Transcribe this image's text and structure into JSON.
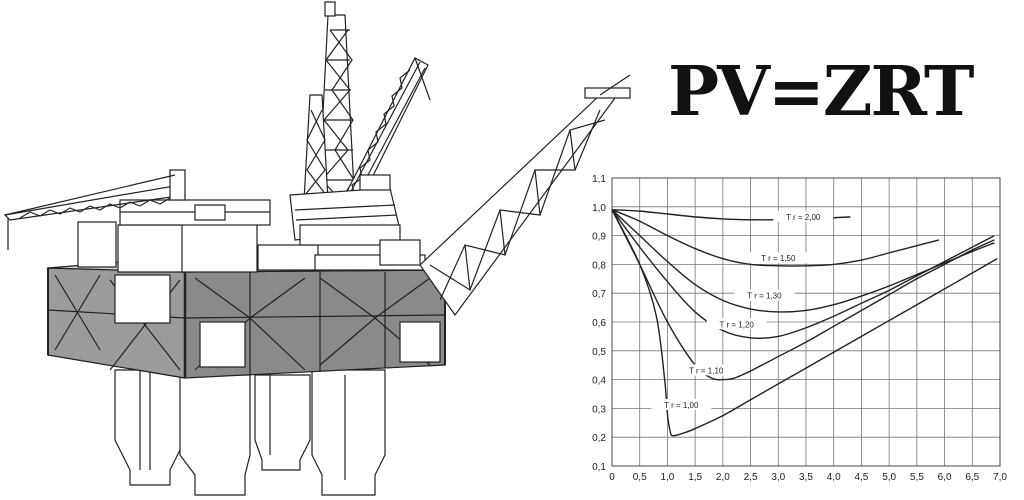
{
  "formula": "PV=ZRT",
  "illustration": {
    "icon": "offshore-oil-platform-icon"
  },
  "chart_data": {
    "type": "line",
    "xlim": [
      0,
      7.0
    ],
    "ylim": [
      0.1,
      1.1
    ],
    "x_ticks": [
      "0",
      "0,5",
      "1,0",
      "1,5",
      "2,0",
      "2,5",
      "3,0",
      "3,5",
      "4,0",
      "4,5",
      "5,0",
      "5,5",
      "6,0",
      "6,5",
      "7,0"
    ],
    "y_ticks": [
      "0,1",
      "0,2",
      "0,3",
      "0,4",
      "0,5",
      "0,6",
      "0,7",
      "0,8",
      "0,9",
      "1,0",
      "1,1"
    ],
    "grid": true,
    "line_color": "#222222",
    "series": [
      {
        "name": "T r = 2,00",
        "x": [
          0,
          0.5,
          1.0,
          1.5,
          2.0,
          2.5,
          3.0,
          3.5,
          4.0,
          4.3
        ],
        "y": [
          0.99,
          0.985,
          0.975,
          0.965,
          0.958,
          0.955,
          0.955,
          0.957,
          0.962,
          0.965
        ]
      },
      {
        "name": "T r = 1,50",
        "x": [
          0,
          0.5,
          1.0,
          1.5,
          2.0,
          2.5,
          3.0,
          3.5,
          4.0,
          4.5,
          5.0,
          5.5,
          5.9
        ],
        "y": [
          0.99,
          0.95,
          0.9,
          0.855,
          0.82,
          0.8,
          0.795,
          0.795,
          0.8,
          0.815,
          0.84,
          0.865,
          0.885
        ]
      },
      {
        "name": "T r = 1,30",
        "x": [
          0,
          0.5,
          1.0,
          1.5,
          2.0,
          2.5,
          3.0,
          3.5,
          4.0,
          4.5,
          5.0,
          5.5,
          6.0,
          6.5,
          6.9
        ],
        "y": [
          0.99,
          0.9,
          0.81,
          0.73,
          0.675,
          0.645,
          0.635,
          0.64,
          0.66,
          0.69,
          0.725,
          0.765,
          0.805,
          0.845,
          0.875
        ]
      },
      {
        "name": "T r = 1,20",
        "x": [
          0,
          0.5,
          1.0,
          1.5,
          2.0,
          2.5,
          3.0,
          3.5,
          4.0,
          4.5,
          5.0,
          5.5,
          6.0,
          6.5,
          6.9
        ],
        "y": [
          0.99,
          0.86,
          0.74,
          0.635,
          0.57,
          0.545,
          0.55,
          0.58,
          0.62,
          0.665,
          0.71,
          0.76,
          0.81,
          0.86,
          0.9
        ]
      },
      {
        "name": "T r = 1,10",
        "x": [
          0,
          0.5,
          1.0,
          1.5,
          1.8,
          2.0,
          2.2,
          2.5,
          3.0,
          3.5,
          4.0,
          4.5,
          5.0,
          5.5,
          6.0,
          6.5,
          6.9
        ],
        "y": [
          0.99,
          0.8,
          0.6,
          0.45,
          0.405,
          0.4,
          0.405,
          0.43,
          0.48,
          0.53,
          0.585,
          0.64,
          0.695,
          0.75,
          0.8,
          0.85,
          0.885
        ]
      },
      {
        "name": "T r = 1,00",
        "x": [
          0,
          0.5,
          0.8,
          0.95,
          1.0,
          1.05,
          1.1,
          1.3,
          1.5,
          2.0,
          2.5,
          3.0,
          3.5,
          4.0,
          4.5,
          5.0,
          5.5,
          6.0,
          6.5,
          6.95
        ],
        "y": [
          0.99,
          0.8,
          0.62,
          0.4,
          0.28,
          0.22,
          0.205,
          0.215,
          0.23,
          0.275,
          0.33,
          0.385,
          0.44,
          0.495,
          0.55,
          0.605,
          0.66,
          0.715,
          0.77,
          0.82
        ]
      }
    ],
    "curve_labels": [
      {
        "text": "T r = 2,00",
        "x": 3.45,
        "y": 0.958
      },
      {
        "text": "T r = 1,50",
        "x": 3.0,
        "y": 0.815
      },
      {
        "text": "T r = 1,30",
        "x": 2.75,
        "y": 0.685
      },
      {
        "text": "T r = 1,20",
        "x": 2.25,
        "y": 0.585
      },
      {
        "text": "T r = 1,10",
        "x": 1.7,
        "y": 0.425
      },
      {
        "text": "T r = 1,00",
        "x": 1.25,
        "y": 0.305
      }
    ]
  }
}
